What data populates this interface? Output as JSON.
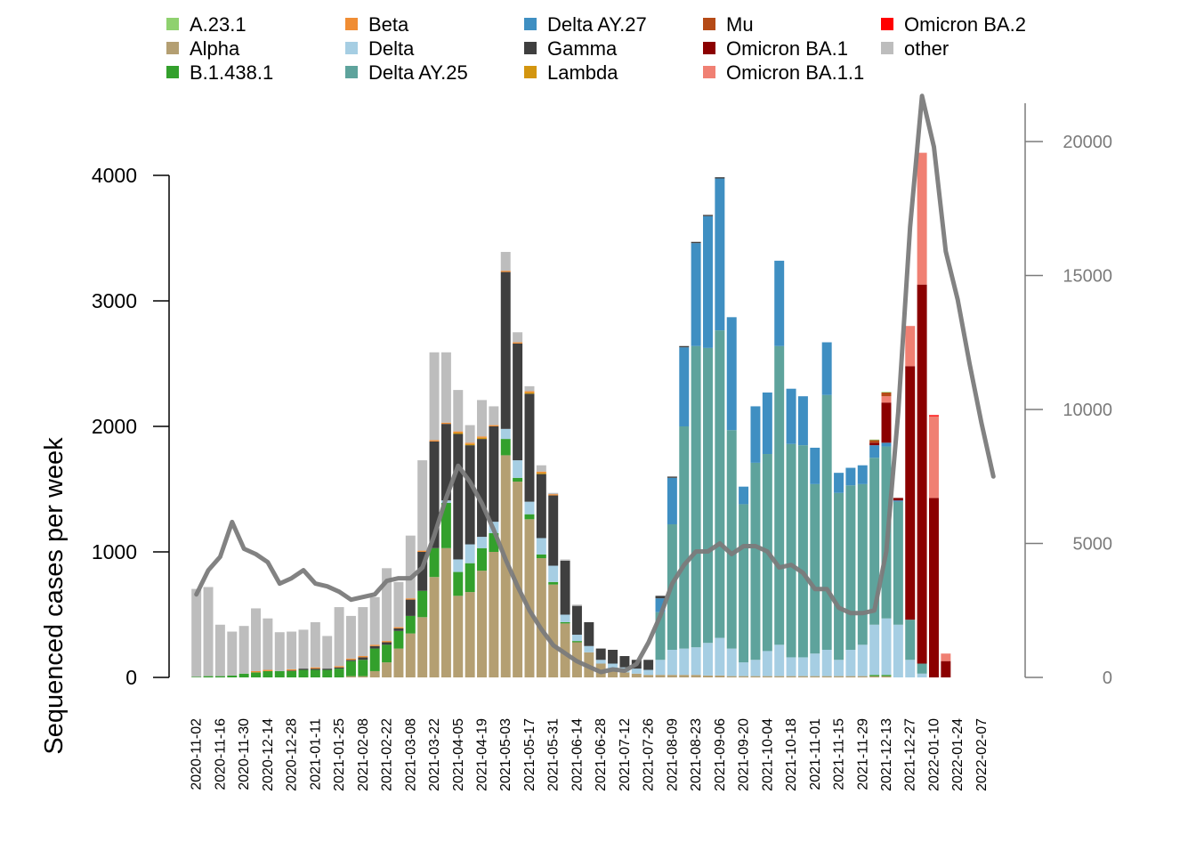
{
  "chart_data": {
    "type": "bar",
    "stacked": true,
    "ylabel": "Sequenced cases per week",
    "ylim": [
      0,
      4000
    ],
    "y_ticks": [
      0,
      1000,
      2000,
      3000,
      4000
    ],
    "y2_ticks": [
      0,
      5000,
      10000,
      15000,
      20000
    ],
    "legend_position": "top",
    "x_tick_labels": [
      "2020-11-02",
      "2020-11-16",
      "2020-11-30",
      "2020-12-14",
      "2020-12-28",
      "2021-01-11",
      "2021-01-25",
      "2021-02-08",
      "2021-02-22",
      "2021-03-08",
      "2021-03-22",
      "2021-04-05",
      "2021-04-19",
      "2021-05-03",
      "2021-05-17",
      "2021-05-31",
      "2021-06-14",
      "2021-06-28",
      "2021-07-12",
      "2021-07-26",
      "2021-08-09",
      "2021-08-23",
      "2021-09-06",
      "2021-09-20",
      "2021-10-04",
      "2021-10-18",
      "2021-11-01",
      "2021-11-15",
      "2021-11-29",
      "2021-12-13",
      "2021-12-27",
      "2022-01-10",
      "2022-01-24",
      "2022-02-07"
    ],
    "weeks": [
      "2020-11-02",
      "2020-11-09",
      "2020-11-16",
      "2020-11-23",
      "2020-11-30",
      "2020-12-07",
      "2020-12-14",
      "2020-12-21",
      "2020-12-28",
      "2021-01-04",
      "2021-01-11",
      "2021-01-18",
      "2021-01-25",
      "2021-02-01",
      "2021-02-08",
      "2021-02-15",
      "2021-02-22",
      "2021-03-01",
      "2021-03-08",
      "2021-03-15",
      "2021-03-22",
      "2021-03-29",
      "2021-04-05",
      "2021-04-12",
      "2021-04-19",
      "2021-04-26",
      "2021-05-03",
      "2021-05-10",
      "2021-05-17",
      "2021-05-24",
      "2021-05-31",
      "2021-06-07",
      "2021-06-14",
      "2021-06-21",
      "2021-06-28",
      "2021-07-05",
      "2021-07-12",
      "2021-07-19",
      "2021-07-26",
      "2021-08-02",
      "2021-08-09",
      "2021-08-16",
      "2021-08-23",
      "2021-08-30",
      "2021-09-06",
      "2021-09-13",
      "2021-09-20",
      "2021-09-27",
      "2021-10-04",
      "2021-10-11",
      "2021-10-18",
      "2021-10-25",
      "2021-11-01",
      "2021-11-08",
      "2021-11-15",
      "2021-11-22",
      "2021-11-29",
      "2021-12-06",
      "2021-12-13",
      "2021-12-20",
      "2021-12-27",
      "2022-01-03",
      "2022-01-10",
      "2022-01-17",
      "2022-01-24",
      "2022-01-31",
      "2022-02-07",
      "2022-02-14"
    ],
    "series": [
      {
        "name": "Alpha",
        "color": "#b49f72",
        "values": [
          0,
          0,
          0,
          0,
          0,
          0,
          0,
          0,
          0,
          0,
          0,
          0,
          0,
          10,
          10,
          50,
          120,
          230,
          350,
          480,
          800,
          1030,
          650,
          680,
          850,
          1000,
          1770,
          1560,
          1260,
          950,
          740,
          430,
          280,
          200,
          110,
          60,
          40,
          30,
          20,
          20,
          20,
          20,
          20,
          15,
          15,
          10,
          10,
          10,
          10,
          10,
          10,
          10,
          10,
          10,
          10,
          10,
          10,
          10,
          10,
          0,
          0,
          0,
          0,
          0,
          0,
          0,
          0,
          0
        ]
      },
      {
        "name": "B.1.438.1",
        "color": "#33a02c",
        "values": [
          5,
          10,
          10,
          15,
          30,
          40,
          50,
          50,
          50,
          60,
          60,
          60,
          70,
          120,
          130,
          180,
          140,
          140,
          140,
          210,
          230,
          360,
          190,
          230,
          180,
          150,
          130,
          30,
          40,
          30,
          20,
          10,
          10,
          0,
          0,
          0,
          0,
          0,
          0,
          0,
          0,
          0,
          0,
          0,
          0,
          0,
          0,
          0,
          0,
          0,
          0,
          0,
          0,
          0,
          0,
          0,
          0,
          10,
          10,
          0,
          0,
          0,
          0,
          0,
          0,
          0,
          0,
          0
        ]
      },
      {
        "name": "Delta",
        "color": "#a6cee3",
        "values": [
          0,
          0,
          0,
          0,
          0,
          0,
          0,
          0,
          0,
          0,
          0,
          0,
          0,
          0,
          0,
          0,
          0,
          0,
          0,
          0,
          0,
          20,
          100,
          150,
          90,
          90,
          80,
          140,
          100,
          130,
          130,
          60,
          50,
          50,
          30,
          50,
          40,
          40,
          40,
          120,
          200,
          210,
          220,
          260,
          300,
          220,
          110,
          130,
          200,
          250,
          150,
          150,
          180,
          210,
          130,
          210,
          250,
          400,
          450,
          420,
          140,
          30,
          0,
          0,
          0,
          0,
          0,
          0
        ]
      },
      {
        "name": "Delta AY.25",
        "color": "#5ea39c",
        "values": [
          0,
          0,
          0,
          0,
          0,
          0,
          0,
          0,
          0,
          0,
          0,
          0,
          0,
          0,
          0,
          0,
          0,
          0,
          0,
          0,
          0,
          0,
          0,
          0,
          0,
          0,
          0,
          0,
          0,
          0,
          0,
          0,
          0,
          0,
          0,
          0,
          0,
          0,
          0,
          380,
          1000,
          1770,
          2400,
          2350,
          2450,
          1740,
          1260,
          1570,
          1570,
          2380,
          1700,
          1690,
          1350,
          2030,
          1330,
          1310,
          1280,
          1330,
          1370,
          980,
          320,
          80,
          0,
          0,
          0,
          0,
          0,
          0
        ]
      },
      {
        "name": "Delta AY.27",
        "color": "#3f8fc2",
        "values": [
          0,
          0,
          0,
          0,
          0,
          0,
          0,
          0,
          0,
          0,
          0,
          0,
          0,
          0,
          0,
          0,
          0,
          0,
          0,
          0,
          0,
          0,
          0,
          0,
          0,
          0,
          0,
          0,
          0,
          0,
          0,
          0,
          0,
          0,
          0,
          0,
          0,
          0,
          0,
          110,
          370,
          630,
          820,
          1050,
          1210,
          900,
          140,
          450,
          490,
          680,
          440,
          390,
          290,
          420,
          160,
          140,
          150,
          100,
          30,
          10,
          0,
          0,
          0,
          0,
          0,
          0,
          0,
          0
        ]
      },
      {
        "name": "Gamma",
        "color": "#3f3f3f",
        "values": [
          0,
          0,
          0,
          0,
          0,
          0,
          0,
          0,
          5,
          10,
          10,
          10,
          10,
          10,
          20,
          20,
          20,
          20,
          130,
          310,
          850,
          610,
          1000,
          790,
          780,
          760,
          1250,
          930,
          860,
          510,
          560,
          430,
          230,
          190,
          90,
          110,
          90,
          70,
          80,
          20,
          10,
          10,
          10,
          10,
          10,
          0,
          0,
          0,
          0,
          0,
          0,
          0,
          0,
          0,
          0,
          0,
          0,
          0,
          0,
          0,
          0,
          0,
          0,
          0,
          0,
          0,
          0,
          0
        ]
      },
      {
        "name": "Omicron BA.1",
        "color": "#8b0000",
        "values": [
          0,
          0,
          0,
          0,
          0,
          0,
          0,
          0,
          0,
          0,
          0,
          0,
          0,
          0,
          0,
          0,
          0,
          0,
          0,
          0,
          0,
          0,
          0,
          0,
          0,
          0,
          0,
          0,
          0,
          0,
          0,
          0,
          0,
          0,
          0,
          0,
          0,
          0,
          0,
          0,
          0,
          0,
          0,
          0,
          0,
          0,
          0,
          0,
          0,
          0,
          0,
          0,
          0,
          0,
          0,
          0,
          0,
          20,
          320,
          20,
          2020,
          3020,
          1430,
          130,
          0,
          0,
          0,
          0
        ]
      },
      {
        "name": "Omicron BA.1.1",
        "color": "#f08073",
        "values": [
          0,
          0,
          0,
          0,
          0,
          0,
          0,
          0,
          0,
          0,
          0,
          0,
          0,
          0,
          0,
          0,
          0,
          0,
          0,
          0,
          0,
          0,
          0,
          0,
          0,
          0,
          0,
          0,
          0,
          0,
          0,
          0,
          0,
          0,
          0,
          0,
          0,
          0,
          0,
          0,
          0,
          0,
          0,
          0,
          0,
          0,
          0,
          0,
          0,
          0,
          0,
          0,
          0,
          0,
          0,
          0,
          0,
          0,
          50,
          0,
          320,
          1050,
          650,
          60,
          0,
          0,
          0,
          0
        ]
      },
      {
        "name": "Omicron BA.2",
        "color": "#ff0000",
        "values": [
          0,
          0,
          0,
          0,
          0,
          0,
          0,
          0,
          0,
          0,
          0,
          0,
          0,
          0,
          0,
          0,
          0,
          0,
          0,
          0,
          0,
          0,
          0,
          0,
          0,
          0,
          0,
          0,
          0,
          0,
          0,
          0,
          0,
          0,
          0,
          0,
          0,
          0,
          0,
          0,
          0,
          0,
          0,
          0,
          0,
          0,
          0,
          0,
          0,
          0,
          0,
          0,
          0,
          0,
          0,
          0,
          0,
          0,
          0,
          0,
          0,
          0,
          10,
          0,
          0,
          0,
          0,
          0
        ]
      },
      {
        "name": "Lambda",
        "color": "#d3950f",
        "values": [
          0,
          0,
          0,
          0,
          0,
          0,
          0,
          0,
          0,
          0,
          0,
          0,
          0,
          0,
          0,
          0,
          0,
          0,
          0,
          0,
          0,
          0,
          10,
          10,
          10,
          0,
          0,
          0,
          10,
          10,
          0,
          0,
          0,
          0,
          0,
          0,
          0,
          0,
          0,
          0,
          0,
          0,
          0,
          0,
          0,
          0,
          0,
          0,
          0,
          0,
          0,
          0,
          0,
          0,
          0,
          0,
          0,
          0,
          0,
          0,
          0,
          0,
          0,
          0,
          0,
          0,
          0,
          0
        ]
      },
      {
        "name": "Beta",
        "color": "#f08d34",
        "values": [
          0,
          0,
          0,
          0,
          0,
          10,
          10,
          0,
          10,
          0,
          10,
          0,
          10,
          10,
          10,
          10,
          10,
          10,
          10,
          10,
          10,
          10,
          10,
          10,
          10,
          10,
          10,
          10,
          10,
          10,
          10,
          0,
          0,
          0,
          0,
          0,
          0,
          0,
          0,
          0,
          0,
          0,
          0,
          0,
          0,
          0,
          0,
          0,
          0,
          0,
          0,
          0,
          0,
          0,
          0,
          0,
          0,
          0,
          0,
          0,
          0,
          0,
          0,
          0,
          0,
          0,
          0,
          0
        ]
      },
      {
        "name": "Mu",
        "color": "#b54a16",
        "values": [
          0,
          0,
          0,
          0,
          0,
          0,
          0,
          0,
          0,
          0,
          0,
          0,
          0,
          0,
          0,
          0,
          0,
          0,
          0,
          0,
          0,
          0,
          0,
          0,
          0,
          0,
          0,
          0,
          0,
          0,
          0,
          0,
          0,
          0,
          0,
          0,
          0,
          0,
          0,
          0,
          0,
          0,
          0,
          0,
          0,
          0,
          0,
          0,
          0,
          0,
          0,
          0,
          0,
          0,
          0,
          0,
          0,
          20,
          30,
          0,
          0,
          0,
          0,
          0,
          0,
          0,
          0,
          0
        ]
      },
      {
        "name": "A.23.1",
        "color": "#8fd16f",
        "values": [
          0,
          0,
          0,
          0,
          0,
          0,
          0,
          0,
          0,
          0,
          0,
          0,
          0,
          0,
          0,
          0,
          0,
          0,
          0,
          0,
          0,
          0,
          0,
          0,
          0,
          0,
          0,
          0,
          0,
          0,
          0,
          0,
          0,
          0,
          0,
          0,
          0,
          0,
          0,
          0,
          0,
          0,
          0,
          0,
          0,
          0,
          0,
          0,
          0,
          0,
          0,
          0,
          0,
          0,
          0,
          0,
          0,
          5,
          5,
          0,
          0,
          0,
          0,
          0,
          0,
          0,
          0,
          0
        ]
      },
      {
        "name": "other",
        "color": "#bdbdbd",
        "values": [
          700,
          710,
          410,
          350,
          380,
          500,
          410,
          310,
          300,
          310,
          360,
          260,
          470,
          340,
          390,
          380,
          580,
          360,
          500,
          720,
          700,
          560,
          330,
          140,
          290,
          150,
          150,
          80,
          40,
          50,
          10,
          10,
          10,
          0,
          0,
          0,
          0,
          0,
          0,
          0,
          0,
          0,
          0,
          0,
          0,
          0,
          0,
          0,
          0,
          0,
          0,
          0,
          0,
          0,
          0,
          0,
          0,
          0,
          0,
          0,
          0,
          0,
          0,
          0,
          0,
          0,
          0,
          0
        ]
      }
    ],
    "line": {
      "color": "#7b7b7b",
      "values": [
        3100,
        4000,
        4500,
        5800,
        4800,
        4600,
        4300,
        3500,
        3700,
        4000,
        3500,
        3400,
        3200,
        2900,
        3000,
        3100,
        3600,
        3700,
        3700,
        4100,
        5300,
        6700,
        7900,
        7300,
        6500,
        5500,
        4400,
        3400,
        2500,
        1800,
        1200,
        900,
        600,
        400,
        200,
        300,
        250,
        500,
        1300,
        2300,
        3500,
        4200,
        4700,
        4700,
        5000,
        4600,
        4900,
        4900,
        4700,
        4100,
        4200,
        3900,
        3300,
        3300,
        2600,
        2400,
        2400,
        2500,
        4700,
        9900,
        16800,
        21700,
        19800,
        15900,
        14100,
        11700,
        9500,
        7500
      ]
    }
  }
}
